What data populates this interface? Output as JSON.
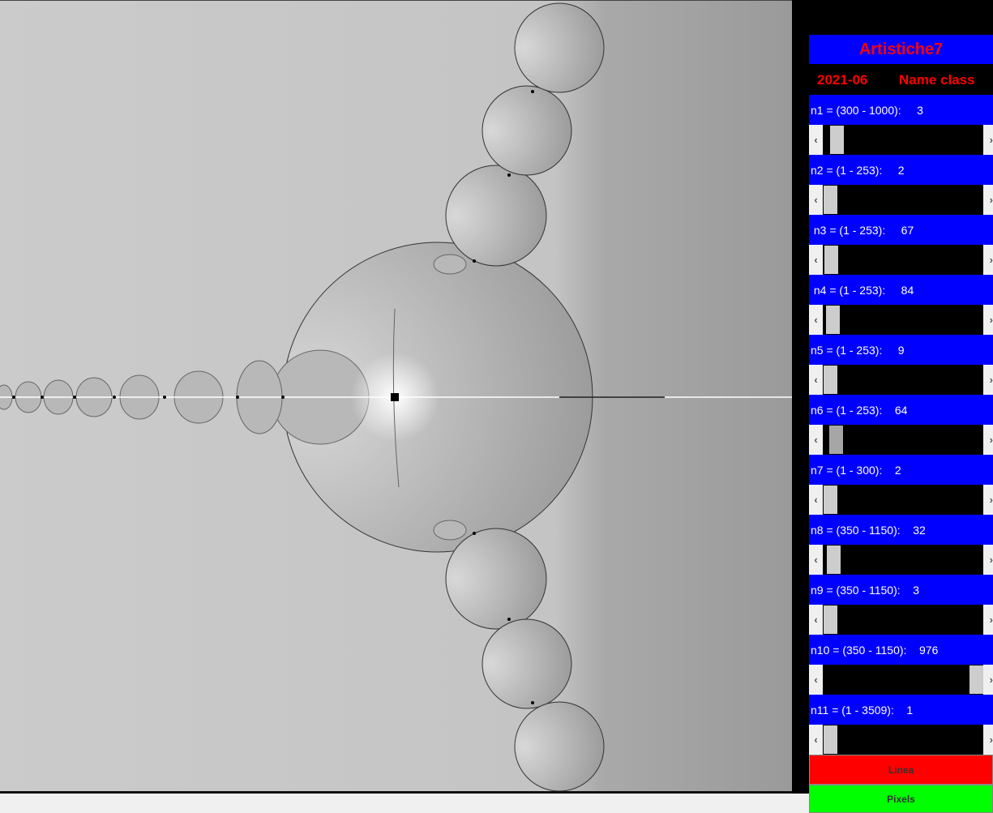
{
  "panel": {
    "title": "Artistiche7",
    "date": "2021-06",
    "name_class": "Name class",
    "colors": {
      "label_bg": "#0000ff",
      "title_text": "#ff0000",
      "linea_bg": "#ff0000",
      "pixels_bg": "#00ff00"
    },
    "params": [
      {
        "label": "n1 = (300 - 1000):     3",
        "thumb_fraction": 0.05
      },
      {
        "label": "n2 = (1 - 253):     2",
        "thumb_fraction": 0.006
      },
      {
        "label": " n3 = (1 - 253):     67",
        "thumb_fraction": 0.01
      },
      {
        "label": " n4 = (1 - 253):     84",
        "thumb_fraction": 0.02
      },
      {
        "label": "n5 = (1 - 253):     9",
        "thumb_fraction": 0.006
      },
      {
        "label": "n6 = (1 - 253):    64",
        "thumb_fraction": 0.044,
        "thumb_active": true
      },
      {
        "label": "n7 = (1 - 300):    2",
        "thumb_fraction": 0.006
      },
      {
        "label": "n8 = (350 - 1150):    32",
        "thumb_fraction": 0.028
      },
      {
        "label": "n9 = (350 - 1150):    3",
        "thumb_fraction": 0.006
      },
      {
        "label": "n10 = (350 - 1150):    976",
        "thumb_fraction": 1.0
      },
      {
        "label": "n11 = (1 - 3509):    1",
        "thumb_fraction": 0.006
      }
    ],
    "scroll_left": "‹",
    "scroll_right": "›",
    "linea_label": "Linea",
    "pixels_label": "Pixels"
  }
}
